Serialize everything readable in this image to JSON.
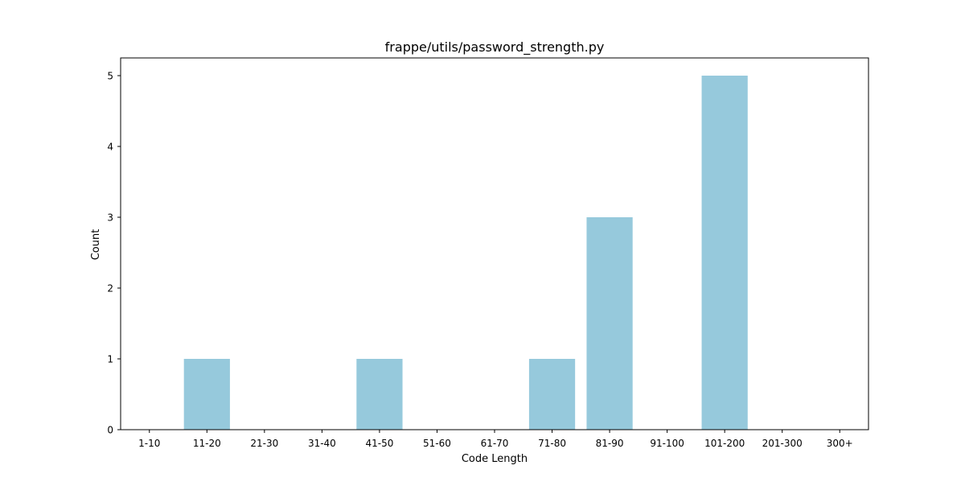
{
  "chart_data": {
    "type": "bar",
    "title": "frappe/utils/password_strength.py",
    "xlabel": "Code Length",
    "ylabel": "Count",
    "categories": [
      "1-10",
      "11-20",
      "21-30",
      "31-40",
      "41-50",
      "51-60",
      "61-70",
      "71-80",
      "81-90",
      "91-100",
      "101-200",
      "201-300",
      "300+"
    ],
    "values": [
      0,
      1,
      0,
      0,
      1,
      0,
      0,
      1,
      3,
      0,
      5,
      0,
      0
    ],
    "yticks": [
      0,
      1,
      2,
      3,
      4,
      5
    ],
    "ylim": [
      0,
      5.25
    ],
    "grid": false,
    "bar_color": "#96c9dc"
  }
}
